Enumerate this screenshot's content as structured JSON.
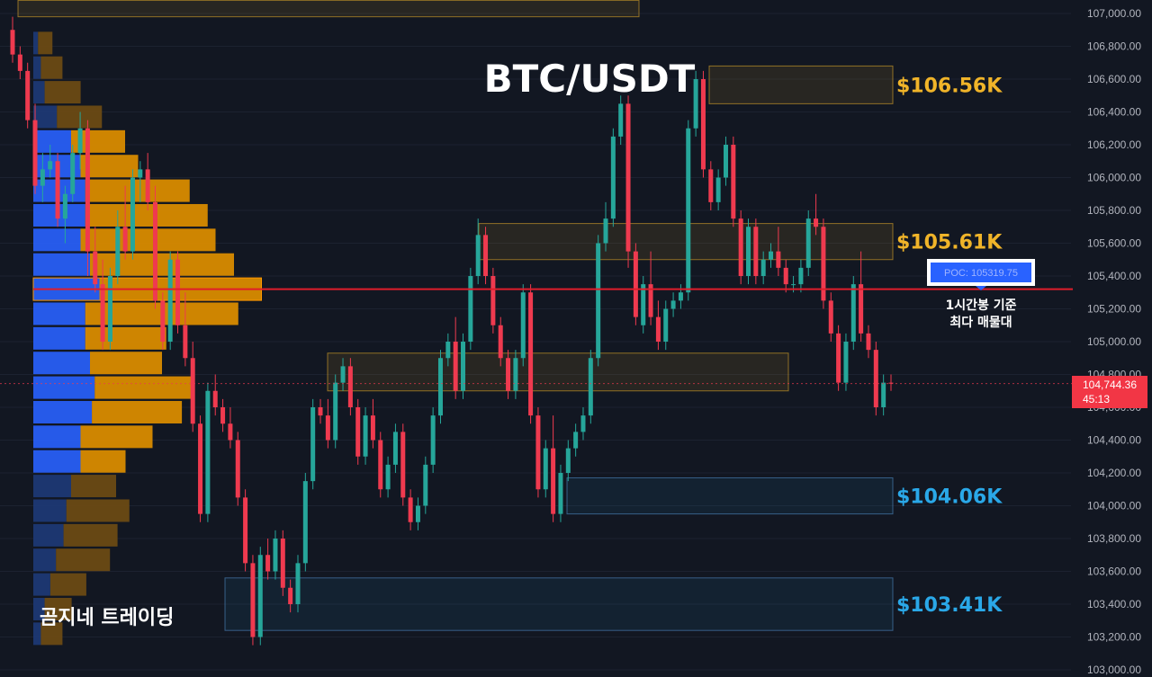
{
  "chart_data": {
    "type": "candlestick",
    "title": "BTC/USDT",
    "watermark": "곰지네 트레이딩",
    "y_axis": {
      "range": [
        103000,
        107000
      ],
      "ticks": [
        "107,000.00",
        "106,800.00",
        "106,600.00",
        "106,400.00",
        "106,200.00",
        "106,000.00",
        "105,800.00",
        "105,600.00",
        "105,400.00",
        "105,200.00",
        "105,000.00",
        "104,800.00",
        "104,600.00",
        "104,400.00",
        "104,200.00",
        "104,000.00",
        "103,800.00",
        "103,600.00",
        "103,400.00",
        "103,200.00",
        "103,000.00"
      ],
      "tick_values": [
        107000,
        106800,
        106600,
        106400,
        106200,
        106000,
        105800,
        105600,
        105400,
        105200,
        105000,
        104800,
        104600,
        104400,
        104200,
        104000,
        103800,
        103600,
        103400,
        103200,
        103000
      ]
    },
    "price_label": {
      "price": "104,744.36",
      "countdown": "45:13",
      "value": 104744.36
    },
    "poc": {
      "label": "POC: 105319.75",
      "value": 105319.75,
      "note_line1": "1시간봉 기준",
      "note_line2": "최다 매물대"
    },
    "zones": [
      {
        "name": "upper-resistance",
        "top": 106680,
        "bottom": 106450,
        "label": "$106.56K",
        "color": "#f0b429"
      },
      {
        "name": "mid-resistance",
        "top": 105720,
        "bottom": 105500,
        "label": "$105.61K",
        "color": "#f0b429"
      },
      {
        "name": "mid-support",
        "top": 104930,
        "bottom": 104700,
        "label": "",
        "color": "#f0b429"
      },
      {
        "name": "lower-support",
        "top": 104170,
        "bottom": 103950,
        "label": "$104.06K",
        "color": "#2aa8e8"
      },
      {
        "name": "bottom-support",
        "top": 103560,
        "bottom": 103240,
        "label": "$103.41K",
        "color": "#2aa8e8"
      },
      {
        "name": "top-left-box",
        "top": 107080,
        "bottom": 106980,
        "label": "",
        "color": "#f0b429"
      }
    ],
    "volume_profile": {
      "levels": [
        106820,
        106670,
        106520,
        106370,
        106220,
        106070,
        105920,
        105770,
        105620,
        105470,
        105320,
        105170,
        105020,
        104870,
        104720,
        104570,
        104420,
        104270,
        104120,
        103970,
        103820,
        103670,
        103520,
        103370,
        103220
      ],
      "buy": [
        5,
        8,
        12,
        25,
        40,
        50,
        55,
        55,
        50,
        60,
        70,
        55,
        55,
        60,
        65,
        62,
        50,
        50,
        40,
        35,
        32,
        24,
        18,
        12,
        8
      ],
      "sell": [
        8,
        12,
        20,
        25,
        30,
        32,
        58,
        68,
        75,
        80,
        90,
        85,
        45,
        40,
        55,
        50,
        40,
        25,
        25,
        35,
        30,
        30,
        20,
        15,
        12
      ]
    },
    "candles": [
      [
        106900,
        106980,
        106700,
        106750
      ],
      [
        106750,
        106800,
        106600,
        106650
      ],
      [
        106650,
        106700,
        106300,
        106350
      ],
      [
        106350,
        106450,
        105900,
        105950
      ],
      [
        105950,
        106150,
        105850,
        106050
      ],
      [
        106050,
        106200,
        106000,
        106100
      ],
      [
        106100,
        106150,
        105700,
        105750
      ],
      [
        105750,
        105950,
        105600,
        105900
      ],
      [
        105900,
        106200,
        105850,
        106150
      ],
      [
        106150,
        106400,
        106050,
        106300
      ],
      [
        106300,
        106350,
        105400,
        105550
      ],
      [
        105550,
        105700,
        105300,
        105350
      ],
      [
        105350,
        105500,
        104950,
        105000
      ],
      [
        105000,
        105450,
        104950,
        105400
      ],
      [
        105400,
        105800,
        105350,
        105700
      ],
      [
        105700,
        105950,
        105500,
        105550
      ],
      [
        105550,
        106050,
        105500,
        106000
      ],
      [
        106000,
        106100,
        105850,
        106050
      ],
      [
        106050,
        106150,
        105800,
        105850
      ],
      [
        105850,
        105950,
        105200,
        105250
      ],
      [
        105250,
        105300,
        104950,
        105000
      ],
      [
        105000,
        105550,
        104950,
        105500
      ],
      [
        105500,
        105550,
        105050,
        105100
      ],
      [
        105100,
        105300,
        104850,
        104900
      ],
      [
        104900,
        105000,
        104450,
        104500
      ],
      [
        104500,
        104550,
        103900,
        103950
      ],
      [
        103950,
        104750,
        103900,
        104700
      ],
      [
        104700,
        104800,
        104550,
        104600
      ],
      [
        104600,
        104650,
        104450,
        104500
      ],
      [
        104500,
        104600,
        104350,
        104400
      ],
      [
        104400,
        104450,
        104000,
        104050
      ],
      [
        104050,
        104100,
        103600,
        103650
      ],
      [
        103650,
        103700,
        103150,
        103200
      ],
      [
        103200,
        103750,
        103150,
        103700
      ],
      [
        103700,
        103800,
        103550,
        103600
      ],
      [
        103600,
        103850,
        103550,
        103800
      ],
      [
        103800,
        103850,
        103450,
        103500
      ],
      [
        103500,
        103550,
        103350,
        103400
      ],
      [
        103400,
        103700,
        103350,
        103650
      ],
      [
        103650,
        104200,
        103600,
        104150
      ],
      [
        104150,
        104650,
        104100,
        104600
      ],
      [
        104600,
        104650,
        104500,
        104550
      ],
      [
        104550,
        104650,
        104350,
        104400
      ],
      [
        104400,
        104800,
        104350,
        104750
      ],
      [
        104750,
        104900,
        104700,
        104850
      ],
      [
        104850,
        104900,
        104550,
        104600
      ],
      [
        104600,
        104650,
        104250,
        104300
      ],
      [
        104300,
        104600,
        104250,
        104550
      ],
      [
        104550,
        104650,
        104350,
        104400
      ],
      [
        104400,
        104450,
        104050,
        104100
      ],
      [
        104100,
        104300,
        104050,
        104250
      ],
      [
        104250,
        104500,
        104200,
        104450
      ],
      [
        104450,
        104500,
        104000,
        104050
      ],
      [
        104050,
        104100,
        103850,
        103900
      ],
      [
        103900,
        104050,
        103850,
        104000
      ],
      [
        104000,
        104300,
        103950,
        104250
      ],
      [
        104250,
        104600,
        104200,
        104550
      ],
      [
        104550,
        104950,
        104500,
        104900
      ],
      [
        104900,
        105050,
        104850,
        105000
      ],
      [
        105000,
        105150,
        104650,
        104700
      ],
      [
        104700,
        105050,
        104650,
        105000
      ],
      [
        105000,
        105450,
        104950,
        105400
      ],
      [
        105400,
        105750,
        105350,
        105650
      ],
      [
        105650,
        105700,
        105350,
        105400
      ],
      [
        105400,
        105450,
        105050,
        105100
      ],
      [
        105100,
        105150,
        104850,
        104900
      ],
      [
        104900,
        104950,
        104650,
        104700
      ],
      [
        104700,
        104950,
        104650,
        104900
      ],
      [
        104900,
        105350,
        104850,
        105300
      ],
      [
        105300,
        105350,
        104500,
        104550
      ],
      [
        104550,
        104600,
        104050,
        104100
      ],
      [
        104100,
        104400,
        104050,
        104350
      ],
      [
        104350,
        104550,
        103900,
        103950
      ],
      [
        103950,
        104250,
        103900,
        104200
      ],
      [
        104200,
        104400,
        104150,
        104350
      ],
      [
        104350,
        104500,
        104300,
        104450
      ],
      [
        104450,
        104600,
        104400,
        104550
      ],
      [
        104550,
        104950,
        104500,
        104900
      ],
      [
        104900,
        105650,
        104850,
        105600
      ],
      [
        105600,
        105850,
        105550,
        105750
      ],
      [
        105750,
        106300,
        105700,
        106250
      ],
      [
        106250,
        106500,
        106200,
        106450
      ],
      [
        106450,
        106500,
        105450,
        105550
      ],
      [
        105550,
        105600,
        105100,
        105150
      ],
      [
        105100,
        105400,
        105050,
        105350
      ],
      [
        105350,
        105550,
        105100,
        105150
      ],
      [
        105150,
        105250,
        104950,
        105000
      ],
      [
        105000,
        105250,
        104950,
        105200
      ],
      [
        105200,
        105300,
        105150,
        105250
      ],
      [
        105250,
        105350,
        105200,
        105300
      ],
      [
        105300,
        106350,
        105250,
        106300
      ],
      [
        106300,
        106650,
        106250,
        106600
      ],
      [
        106600,
        106650,
        106000,
        106050
      ],
      [
        106050,
        106100,
        105800,
        105850
      ],
      [
        105850,
        106050,
        105800,
        106000
      ],
      [
        106000,
        106250,
        105950,
        106200
      ],
      [
        106200,
        106250,
        105700,
        105750
      ],
      [
        105750,
        105800,
        105350,
        105400
      ],
      [
        105400,
        105750,
        105350,
        105700
      ],
      [
        105700,
        105750,
        105350,
        105400
      ],
      [
        105400,
        105550,
        105350,
        105500
      ],
      [
        105500,
        105600,
        105450,
        105550
      ],
      [
        105550,
        105700,
        105400,
        105450
      ],
      [
        105450,
        105500,
        105300,
        105350
      ],
      [
        105350,
        105400,
        105300,
        105350
      ],
      [
        105350,
        105500,
        105300,
        105450
      ],
      [
        105450,
        105800,
        105400,
        105750
      ],
      [
        105750,
        105900,
        105650,
        105700
      ],
      [
        105700,
        105750,
        105200,
        105250
      ],
      [
        105250,
        105300,
        105000,
        105050
      ],
      [
        105050,
        105100,
        104700,
        104750
      ],
      [
        104750,
        105050,
        104700,
        105000
      ],
      [
        105000,
        105400,
        104950,
        105350
      ],
      [
        105350,
        105550,
        105000,
        105050
      ],
      [
        105050,
        105100,
        104900,
        104950
      ],
      [
        104950,
        105000,
        104550,
        104600
      ],
      [
        104600,
        104800,
        104550,
        104750
      ],
      [
        104750,
        104800,
        104700,
        104744
      ]
    ]
  }
}
